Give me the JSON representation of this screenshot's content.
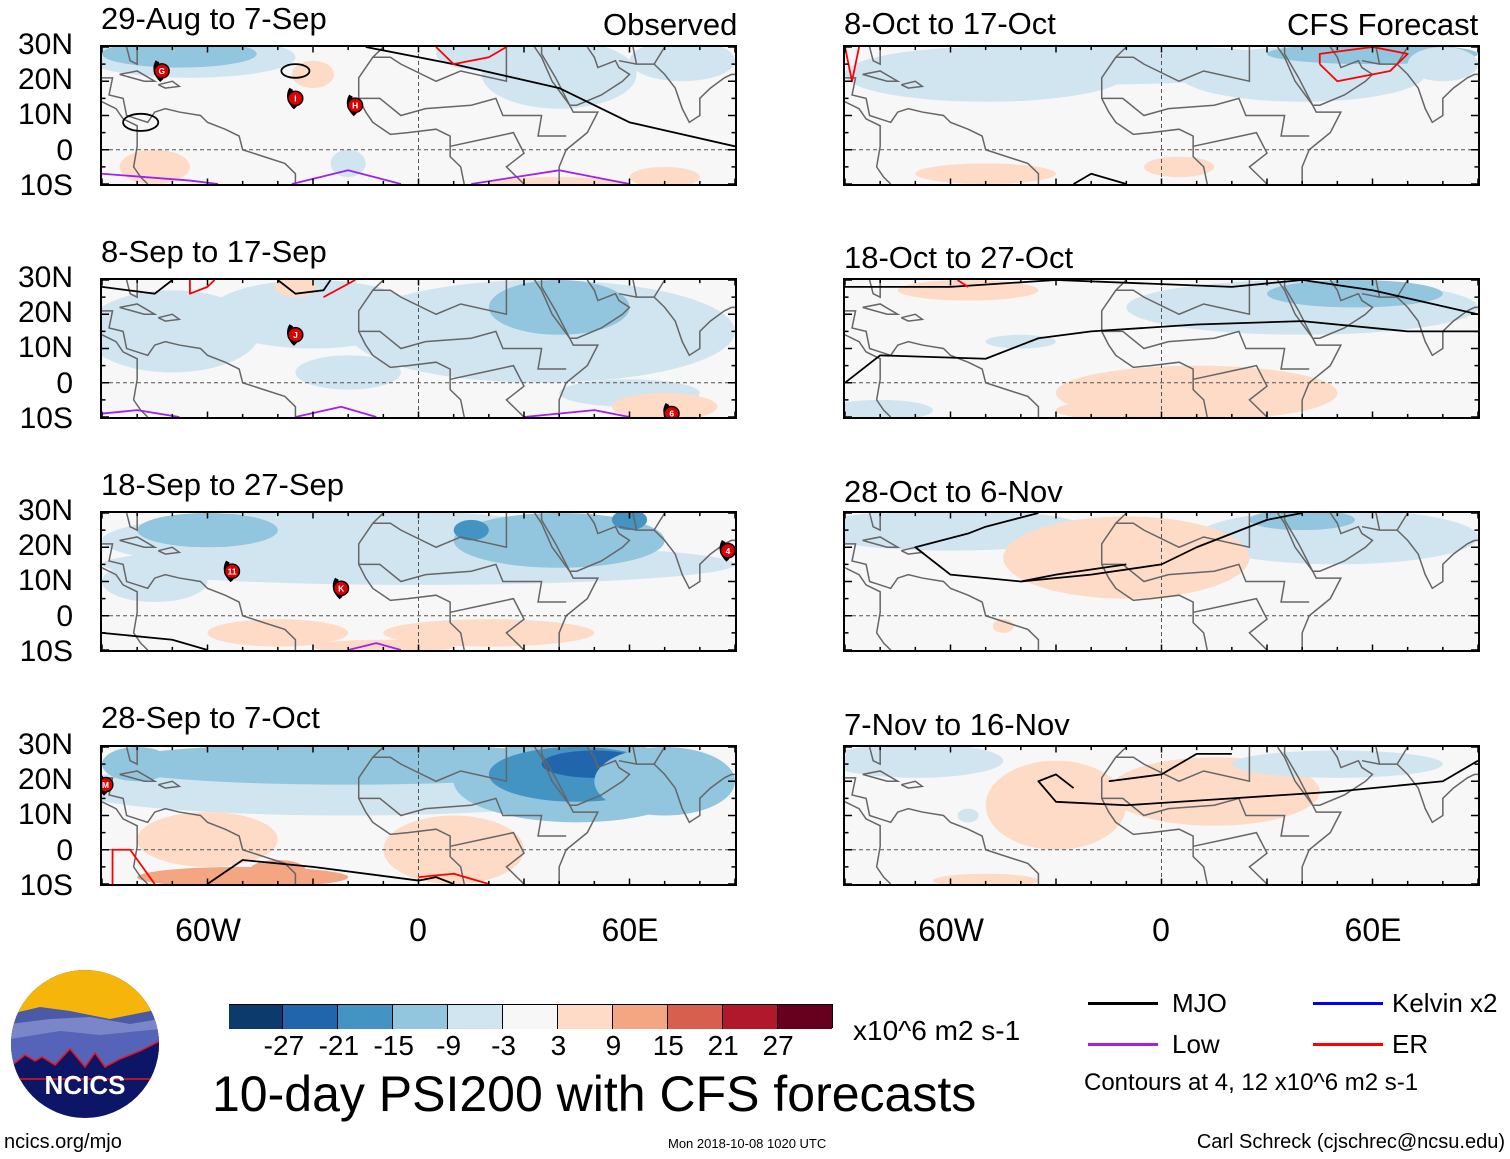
{
  "title": "10-day PSI200 with CFS forecasts",
  "column_headers": {
    "left": "Observed",
    "right": "CFS Forecast"
  },
  "lat_ticks": [
    "30N",
    "20N",
    "10N",
    "0",
    "10S"
  ],
  "lon_ticks": [
    "60W",
    "0",
    "60E"
  ],
  "chart_data": [
    {
      "type": "heatmap",
      "title": "29-Aug to 7-Sep",
      "column": "Observed",
      "storms": [
        {
          "label": "G",
          "lon": -73,
          "lat": 23
        },
        {
          "label": "I",
          "lon": -35,
          "lat": 15
        },
        {
          "label": "H",
          "lon": -18,
          "lat": 13
        }
      ]
    },
    {
      "type": "heatmap",
      "title": "8-Sep to 17-Sep",
      "column": "Observed",
      "storms": [
        {
          "label": "J",
          "lon": -35,
          "lat": 14
        },
        {
          "label": "6",
          "lon": 72,
          "lat": -9
        }
      ]
    },
    {
      "type": "heatmap",
      "title": "18-Sep to 27-Sep",
      "column": "Observed",
      "storms": [
        {
          "label": "11",
          "lon": -53,
          "lat": 13
        },
        {
          "label": "K",
          "lon": -22,
          "lat": 8
        },
        {
          "label": "4",
          "lon": 88,
          "lat": 19
        }
      ]
    },
    {
      "type": "heatmap",
      "title": "28-Sep to 7-Oct",
      "column": "Observed",
      "storms": [
        {
          "label": "M",
          "lon": -89,
          "lat": 19
        }
      ]
    },
    {
      "type": "heatmap",
      "title": "8-Oct to 17-Oct",
      "column": "CFS Forecast",
      "storms": []
    },
    {
      "type": "heatmap",
      "title": "18-Oct to 27-Oct",
      "column": "CFS Forecast",
      "storms": []
    },
    {
      "type": "heatmap",
      "title": "28-Oct to 6-Nov",
      "column": "CFS Forecast",
      "storms": []
    },
    {
      "type": "heatmap",
      "title": "7-Nov to 16-Nov",
      "column": "CFS Forecast",
      "storms": []
    }
  ],
  "axes": {
    "lon_range": [
      -90,
      90
    ],
    "lat_range": [
      -10,
      30
    ]
  },
  "colorbar": {
    "labels": [
      "-27",
      "-21",
      "-15",
      "-9",
      "-3",
      "3",
      "9",
      "15",
      "21",
      "27"
    ],
    "colors": [
      "#0c3a6d",
      "#2166ac",
      "#4393c3",
      "#92c5de",
      "#d1e5f0",
      "#f7f7f7",
      "#fddbc7",
      "#f4a582",
      "#d6604d",
      "#b2182b",
      "#67001f"
    ],
    "units": "x10^6 m2 s-1"
  },
  "legend": [
    {
      "label": "MJO",
      "color": "#000000"
    },
    {
      "label": "Kelvin x2",
      "color": "#0000ff"
    },
    {
      "label": "Low",
      "color": "#a020f0"
    },
    {
      "label": "ER",
      "color": "#ff0000"
    }
  ],
  "contours_note": "Contours at 4, 12 x10^6 m2 s-1",
  "logo_text": "NCICS",
  "footer": {
    "url": "ncics.org/mjo",
    "timestamp": "Mon 2018-10-08 1020 UTC",
    "author": "Carl Schreck (cjschrec@ncsu.edu)"
  }
}
